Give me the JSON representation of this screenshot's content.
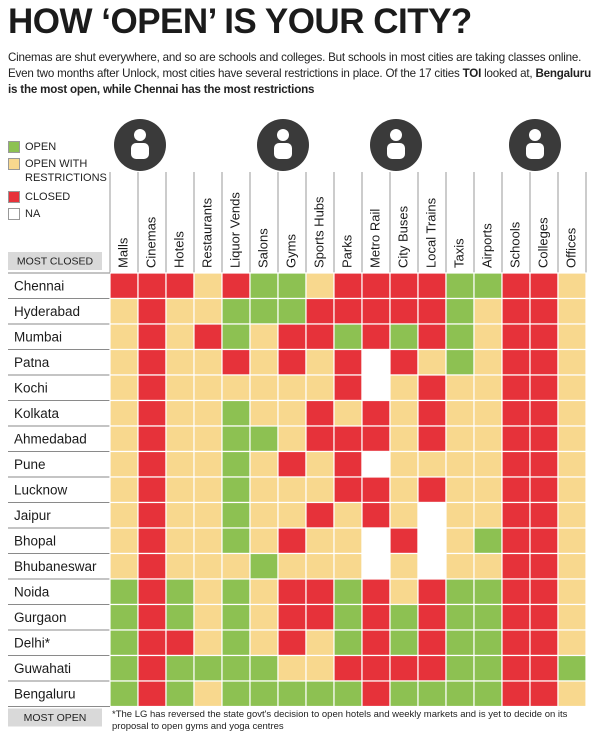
{
  "title": "HOW ‘OPEN’ IS YOUR CITY?",
  "intro": [
    {
      "text": "Cinemas are shut everywhere, and so are schools and colleges. But schools in most cities are taking classes online. Even two months after Unlock, most cities have several restrictions in place. Of the 17 cities ",
      "bold": false
    },
    {
      "text": "TOI",
      "bold": true
    },
    {
      "text": " looked at, ",
      "bold": false
    },
    {
      "text": "Bengaluru is the most open, while Chennai has the most restrictions",
      "bold": true
    }
  ],
  "legend": [
    {
      "label": "OPEN",
      "color": "#8dc152"
    },
    {
      "label": "OPEN WITH RESTRICTIONS",
      "color": "#f8d88e"
    },
    {
      "label": "CLOSED",
      "color": "#e6323a"
    },
    {
      "label": "NA",
      "color": "#ffffff"
    }
  ],
  "columns": [
    "Malls",
    "Cinemas",
    "Hotels",
    "Restaurants",
    "Liquor Vends",
    "Salons",
    "Gyms",
    "Sports Hubs",
    "Parks",
    "Metro Rail",
    "City Buses",
    "Local Trains",
    "Taxis",
    "Airports",
    "Schools",
    "Colleges",
    "Offices"
  ],
  "most_closed": "MOST CLOSED",
  "most_open": "MOST OPEN",
  "rows": [
    {
      "city": "Chennai",
      "status": [
        2,
        2,
        2,
        1,
        2,
        0,
        0,
        1,
        2,
        2,
        2,
        2,
        0,
        0,
        2,
        2,
        1
      ]
    },
    {
      "city": "Hyderabad",
      "status": [
        1,
        2,
        1,
        1,
        0,
        0,
        0,
        2,
        2,
        2,
        2,
        2,
        0,
        1,
        2,
        2,
        1
      ]
    },
    {
      "city": "Mumbai",
      "status": [
        1,
        2,
        1,
        2,
        0,
        1,
        2,
        2,
        0,
        2,
        0,
        2,
        0,
        1,
        2,
        2,
        1
      ]
    },
    {
      "city": "Patna",
      "status": [
        1,
        2,
        1,
        1,
        2,
        1,
        2,
        1,
        2,
        3,
        2,
        1,
        0,
        1,
        2,
        2,
        1
      ]
    },
    {
      "city": "Kochi",
      "status": [
        1,
        2,
        1,
        1,
        1,
        1,
        1,
        1,
        2,
        3,
        1,
        2,
        1,
        1,
        2,
        2,
        1
      ]
    },
    {
      "city": "Kolkata",
      "status": [
        1,
        2,
        1,
        1,
        0,
        1,
        1,
        2,
        1,
        2,
        1,
        2,
        1,
        1,
        2,
        2,
        1
      ]
    },
    {
      "city": "Ahmedabad",
      "status": [
        1,
        2,
        1,
        1,
        0,
        0,
        1,
        2,
        2,
        2,
        1,
        2,
        1,
        1,
        2,
        2,
        1
      ]
    },
    {
      "city": "Pune",
      "status": [
        1,
        2,
        1,
        1,
        0,
        1,
        2,
        1,
        2,
        3,
        1,
        1,
        1,
        1,
        2,
        2,
        1
      ]
    },
    {
      "city": "Lucknow",
      "status": [
        1,
        2,
        1,
        1,
        0,
        1,
        1,
        1,
        2,
        2,
        1,
        2,
        1,
        1,
        2,
        2,
        1
      ]
    },
    {
      "city": "Jaipur",
      "status": [
        1,
        2,
        1,
        1,
        0,
        1,
        1,
        2,
        1,
        2,
        1,
        3,
        1,
        1,
        2,
        2,
        1
      ]
    },
    {
      "city": "Bhopal",
      "status": [
        1,
        2,
        1,
        1,
        0,
        1,
        2,
        1,
        1,
        3,
        2,
        3,
        1,
        0,
        2,
        2,
        1
      ]
    },
    {
      "city": "Bhubaneswar",
      "status": [
        1,
        2,
        1,
        1,
        1,
        0,
        1,
        1,
        1,
        3,
        1,
        3,
        1,
        1,
        2,
        2,
        1
      ]
    },
    {
      "city": "Noida",
      "status": [
        0,
        2,
        0,
        1,
        0,
        1,
        2,
        2,
        0,
        2,
        1,
        2,
        0,
        0,
        2,
        2,
        1
      ]
    },
    {
      "city": "Gurgaon",
      "status": [
        0,
        2,
        0,
        1,
        0,
        1,
        2,
        2,
        0,
        2,
        0,
        2,
        0,
        0,
        2,
        2,
        1
      ]
    },
    {
      "city": "Delhi*",
      "status": [
        0,
        2,
        2,
        1,
        0,
        1,
        2,
        1,
        0,
        2,
        0,
        2,
        0,
        0,
        2,
        2,
        1
      ]
    },
    {
      "city": "Guwahati",
      "status": [
        0,
        2,
        0,
        0,
        0,
        0,
        1,
        1,
        2,
        2,
        2,
        2,
        0,
        0,
        2,
        2,
        0
      ]
    },
    {
      "city": "Bengaluru",
      "status": [
        0,
        2,
        0,
        1,
        0,
        0,
        0,
        0,
        0,
        2,
        0,
        0,
        0,
        0,
        2,
        2,
        1
      ]
    }
  ],
  "footnote": "*The LG has reversed the state govt's decision to open hotels and weekly markets and is yet to decide on its proposal to open gyms and yoga centres"
}
